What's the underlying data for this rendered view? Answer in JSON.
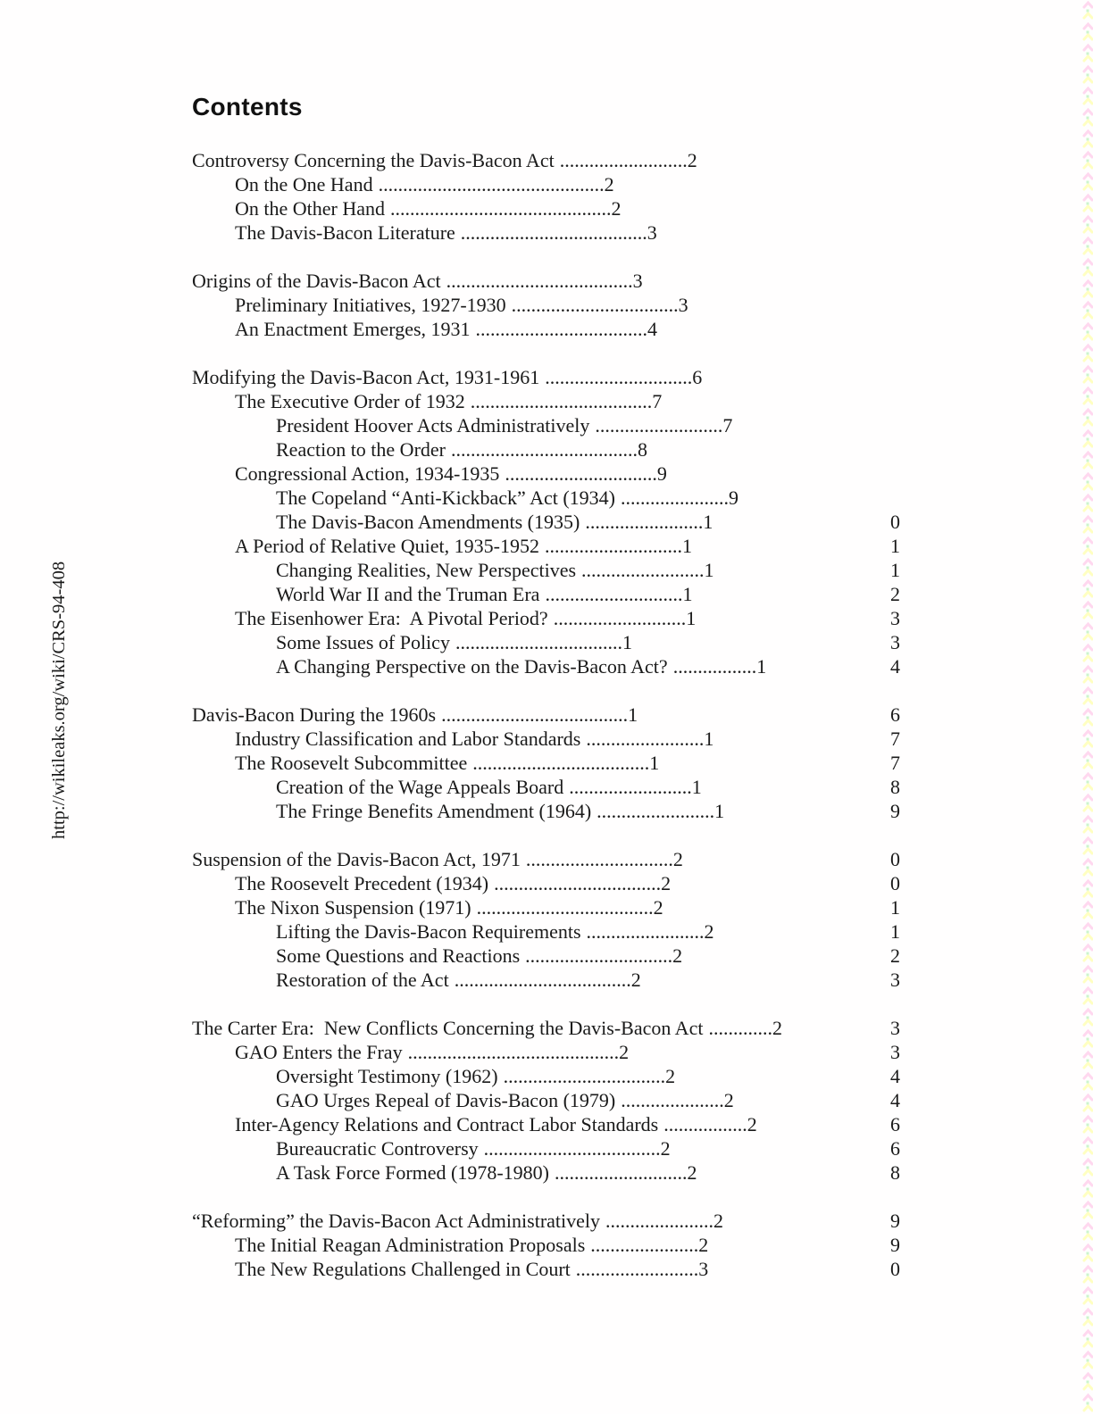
{
  "page": {
    "heading": "Contents",
    "watermark_url": "http://wikileaks.org/wiki/CRS-94-408"
  },
  "colors": {
    "text": "#1a1a1a",
    "edge_pink": "#ffd8ef",
    "edge_yellow": "#ffffc2",
    "edge_green": "#cdf5cd"
  },
  "toc": {
    "sections": [
      {
        "entries": [
          {
            "level": 0,
            "title": "Controversy Concerning the Davis-Bacon Act",
            "dots": 26,
            "page": "2",
            "page2": ""
          },
          {
            "level": 1,
            "title": "On the One Hand",
            "dots": 46,
            "page": "2",
            "page2": ""
          },
          {
            "level": 1,
            "title": "On the Other Hand",
            "dots": 45,
            "page": "2",
            "page2": ""
          },
          {
            "level": 1,
            "title": "The Davis-Bacon Literature",
            "dots": 38,
            "page": "3",
            "page2": ""
          }
        ]
      },
      {
        "entries": [
          {
            "level": 0,
            "title": "Origins of the Davis-Bacon Act",
            "dots": 38,
            "page": "3",
            "page2": ""
          },
          {
            "level": 1,
            "title": "Preliminary Initiatives, 1927-1930",
            "dots": 34,
            "page": "3",
            "page2": ""
          },
          {
            "level": 1,
            "title": "An Enactment Emerges, 1931",
            "dots": 35,
            "page": "4",
            "page2": ""
          }
        ]
      },
      {
        "entries": [
          {
            "level": 0,
            "title": "Modifying the Davis-Bacon Act, 1931-1961",
            "dots": 30,
            "page": "6",
            "page2": ""
          },
          {
            "level": 1,
            "title": "The Executive Order of 1932",
            "dots": 37,
            "page": "7",
            "page2": ""
          },
          {
            "level": 2,
            "title": "President Hoover Acts Administratively",
            "dots": 26,
            "page": "7",
            "page2": ""
          },
          {
            "level": 2,
            "title": "Reaction to the Order",
            "dots": 38,
            "page": "8",
            "page2": ""
          },
          {
            "level": 1,
            "title": "Congressional Action, 1934-1935",
            "dots": 31,
            "page": "9",
            "page2": ""
          },
          {
            "level": 2,
            "title": "The Copeland “Anti-Kickback” Act (1934)",
            "dots": 22,
            "page": "9",
            "page2": ""
          },
          {
            "level": 2,
            "title": "The Davis-Bacon Amendments (1935)",
            "dots": 24,
            "page": "1",
            "page2": "0"
          },
          {
            "level": 1,
            "title": "A Period of Relative Quiet, 1935-1952",
            "dots": 28,
            "page": "1",
            "page2": "1"
          },
          {
            "level": 2,
            "title": "Changing Realities, New Perspectives",
            "dots": 25,
            "page": "1",
            "page2": "1"
          },
          {
            "level": 2,
            "title": "World War II and the Truman Era",
            "dots": 28,
            "page": "1",
            "page2": "2"
          },
          {
            "level": 1,
            "title": "The Eisenhower Era:  A Pivotal Period?",
            "dots": 27,
            "page": "1",
            "page2": "3"
          },
          {
            "level": 2,
            "title": "Some Issues of Policy",
            "dots": 34,
            "page": "1",
            "page2": "3"
          },
          {
            "level": 2,
            "title": "A Changing Perspective on the Davis-Bacon Act?",
            "dots": 17,
            "page": "1",
            "page2": "4"
          }
        ]
      },
      {
        "entries": [
          {
            "level": 0,
            "title": "Davis-Bacon During the 1960s",
            "dots": 38,
            "page": "1",
            "page2": "6"
          },
          {
            "level": 1,
            "title": "Industry Classification and Labor Standards",
            "dots": 24,
            "page": "1",
            "page2": "7"
          },
          {
            "level": 1,
            "title": "The Roosevelt Subcommittee",
            "dots": 36,
            "page": "1",
            "page2": "7"
          },
          {
            "level": 2,
            "title": "Creation of the Wage Appeals Board",
            "dots": 25,
            "page": "1",
            "page2": "8"
          },
          {
            "level": 2,
            "title": "The Fringe Benefits Amendment (1964)",
            "dots": 24,
            "page": "1",
            "page2": "9"
          }
        ]
      },
      {
        "entries": [
          {
            "level": 0,
            "title": "Suspension of the Davis-Bacon Act, 1971",
            "dots": 30,
            "page": "2",
            "page2": "0"
          },
          {
            "level": 1,
            "title": "The Roosevelt Precedent (1934)",
            "dots": 34,
            "page": "2",
            "page2": "0"
          },
          {
            "level": 1,
            "title": "The Nixon Suspension (1971)",
            "dots": 36,
            "page": "2",
            "page2": "1"
          },
          {
            "level": 2,
            "title": "Lifting the Davis-Bacon Requirements",
            "dots": 24,
            "page": "2",
            "page2": "1"
          },
          {
            "level": 2,
            "title": "Some Questions and Reactions",
            "dots": 30,
            "page": "2",
            "page2": "2"
          },
          {
            "level": 2,
            "title": "Restoration of the Act",
            "dots": 36,
            "page": "2",
            "page2": "3"
          }
        ]
      },
      {
        "entries": [
          {
            "level": 0,
            "title": "The Carter Era:  New Conflicts Concerning the Davis-Bacon Act",
            "dots": 13,
            "page": "2",
            "page2": "3"
          },
          {
            "level": 1,
            "title": "GAO Enters the Fray",
            "dots": 43,
            "page": "2",
            "page2": "3"
          },
          {
            "level": 2,
            "title": "Oversight Testimony (1962)",
            "dots": 33,
            "page": "2",
            "page2": "4"
          },
          {
            "level": 2,
            "title": "GAO Urges Repeal of Davis-Bacon (1979)",
            "dots": 21,
            "page": "2",
            "page2": "4"
          },
          {
            "level": 1,
            "title": "Inter-Agency Relations and Contract Labor Standards",
            "dots": 17,
            "page": "2",
            "page2": "6"
          },
          {
            "level": 2,
            "title": "Bureaucratic Controversy",
            "dots": 36,
            "page": "2",
            "page2": "6"
          },
          {
            "level": 2,
            "title": "A Task Force Formed (1978-1980)",
            "dots": 27,
            "page": "2",
            "page2": "8"
          }
        ]
      },
      {
        "entries": [
          {
            "level": 0,
            "title": "“Reforming” the Davis-Bacon Act Administratively",
            "dots": 22,
            "page": "2",
            "page2": "9"
          },
          {
            "level": 1,
            "title": "The Initial Reagan Administration Proposals",
            "dots": 22,
            "page": "2",
            "page2": "9"
          },
          {
            "level": 1,
            "title": "The New Regulations Challenged in Court",
            "dots": 25,
            "page": "3",
            "page2": "0"
          }
        ]
      }
    ]
  }
}
